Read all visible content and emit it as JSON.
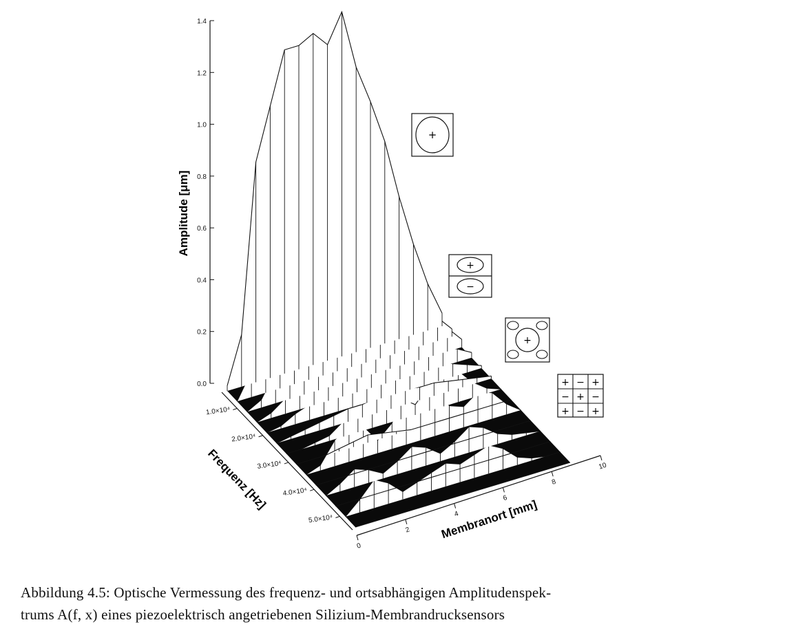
{
  "figure": {
    "ylabel": "Amplitude [μm]",
    "freq_label": "Frequenz [Hz]",
    "pos_label": "Membranort [mm]",
    "y_ticks": [
      "0.0",
      "0.2",
      "0.4",
      "0.6",
      "0.8",
      "1.0",
      "1.2",
      "1.4"
    ],
    "freq_ticks": [
      "1.0×10⁴",
      "2.0×10⁴",
      "3.0×10⁴",
      "4.0×10⁴",
      "5.0×10⁴"
    ],
    "pos_ticks": [
      "0",
      "2",
      "4",
      "6",
      "8",
      "10"
    ],
    "mode_symbols": {
      "mode1": [
        "+"
      ],
      "mode2": [
        "+",
        "−"
      ],
      "mode3": [
        "+"
      ],
      "mode4": [
        "+",
        "−",
        "+",
        "−",
        "+",
        "−",
        "+",
        "−",
        "+"
      ]
    }
  },
  "chart_data": {
    "type": "3d-surface",
    "xlabel": "Membranort [mm]",
    "ylabel": "Frequenz [Hz]",
    "zlabel": "Amplitude [μm]",
    "xlim": [
      0,
      10
    ],
    "zlim": [
      0,
      1.4
    ],
    "x": [
      0,
      0.6,
      1.2,
      1.8,
      2.4,
      3.0,
      3.6,
      4.2,
      4.8,
      5.4,
      6.0,
      6.6,
      7.2,
      7.8,
      8.4,
      9.0
    ],
    "series": [
      {
        "values": [
          0.02,
          0.2,
          0.85,
          1.05,
          1.25,
          1.25,
          1.28,
          1.22,
          1.33,
          1.1,
          0.95,
          0.78,
          0.55,
          0.35,
          0.18,
          0.05
        ]
      },
      {
        "values": [
          0.0,
          0.1,
          0.45,
          0.58,
          0.63,
          0.7,
          0.7,
          0.7,
          0.72,
          0.62,
          0.52,
          0.4,
          0.28,
          0.18,
          0.09,
          0.03
        ]
      },
      {
        "values": [
          0.0,
          0.03,
          0.12,
          0.17,
          0.2,
          0.22,
          0.24,
          0.25,
          0.28,
          0.26,
          0.24,
          0.22,
          0.18,
          0.14,
          0.09,
          0.03
        ]
      },
      {
        "values": [
          0.0,
          0.02,
          0.06,
          0.09,
          0.11,
          0.12,
          0.13,
          0.14,
          0.16,
          0.15,
          0.13,
          0.11,
          0.09,
          0.07,
          0.05,
          0.02
        ]
      },
      {
        "values": [
          0.0,
          0.01,
          0.04,
          0.06,
          0.07,
          0.08,
          0.09,
          0.1,
          0.11,
          0.1,
          0.09,
          0.08,
          0.07,
          0.05,
          0.03,
          0.01
        ]
      },
      {
        "values": [
          0.0,
          0.01,
          0.02,
          0.03,
          0.04,
          0.05,
          0.05,
          0.06,
          0.06,
          0.06,
          0.05,
          0.05,
          0.04,
          0.03,
          0.02,
          0.01
        ]
      },
      {
        "values": [
          0.0,
          0.0,
          0.01,
          0.02,
          0.06,
          0.1,
          0.13,
          0.12,
          0.08,
          0.04,
          0.1,
          0.14,
          0.12,
          0.06,
          0.02,
          0.0
        ]
      },
      {
        "values": [
          0.0,
          0.0,
          0.0,
          0.01,
          0.02,
          0.03,
          0.02,
          0.01,
          0.0,
          0.0,
          0.0,
          0.0,
          0.0,
          0.0,
          0.0,
          0.0
        ]
      },
      {
        "values": [
          0.0,
          0.02,
          0.1,
          0.14,
          0.12,
          0.05,
          0.1,
          0.2,
          0.24,
          0.2,
          0.1,
          0.08,
          0.12,
          0.1,
          0.04,
          0.0
        ]
      },
      {
        "values": [
          0.0,
          0.0,
          0.0,
          0.0,
          0.0,
          0.0,
          0.0,
          0.0,
          0.0,
          0.0,
          0.0,
          0.0,
          0.0,
          0.0,
          0.0,
          0.0
        ]
      },
      {
        "values": [
          0.0,
          0.03,
          0.07,
          0.05,
          0.02,
          0.05,
          0.09,
          0.07,
          0.03,
          0.06,
          0.1,
          0.08,
          0.04,
          0.02,
          0.01,
          0.0
        ]
      },
      {
        "values": [
          0.0,
          0.0,
          0.0,
          0.0,
          0.0,
          0.0,
          0.0,
          0.0,
          0.0,
          0.0,
          0.0,
          0.0,
          0.0,
          0.0,
          0.0,
          0.0
        ]
      },
      {
        "values": [
          0.0,
          0.05,
          0.11,
          0.08,
          0.03,
          0.05,
          0.07,
          0.09,
          0.07,
          0.09,
          0.11,
          0.08,
          0.03,
          0.01,
          0.0,
          0.0
        ]
      },
      {
        "values": [
          0.0,
          0.0,
          0.0,
          0.0,
          0.0,
          0.0,
          0.0,
          0.0,
          0.0,
          0.0,
          0.0,
          0.0,
          0.0,
          0.0,
          0.0,
          0.0
        ]
      }
    ]
  },
  "caption": {
    "line1": "Abbildung 4.5: Optische Vermessung des frequenz- und ortsabhängigen Amplitudenspek-",
    "line2": "trums A(f, x) eines piezoelektrisch angetriebenen Silizium-Membrandrucksensors"
  }
}
